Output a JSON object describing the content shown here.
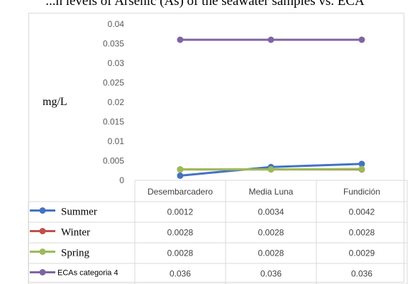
{
  "title": "...n levels of Arsenic (As) of the seawater samples vs. ECA",
  "chart_data": {
    "type": "line",
    "title": "...n levels of Arsenic (As) of the seawater samples vs. ECA",
    "ylabel": "mg/L",
    "xlabel": "",
    "ylim": [
      0,
      0.04
    ],
    "yticks": [
      "0.04",
      "0.035",
      "0.03",
      "0.025",
      "0.02",
      "0.015",
      "0.01",
      "0.005",
      "0"
    ],
    "categories": [
      "Desembarcadero",
      "Media Luna",
      "Fundición"
    ],
    "series": [
      {
        "name": "Summer",
        "color": "#4472C4",
        "values": [
          0.0012,
          0.0034,
          0.0042
        ],
        "labels": [
          "0.0012",
          "0.0034",
          "0.0042"
        ]
      },
      {
        "name": "Winter",
        "color": "#C0504D",
        "values": [
          0.0028,
          0.0028,
          0.0028
        ],
        "labels": [
          "0.0028",
          "0.0028",
          "0.0028"
        ]
      },
      {
        "name": "Spring",
        "color": "#9BBB59",
        "values": [
          0.0028,
          0.0028,
          0.0029
        ],
        "labels": [
          "0.0028",
          "0.0028",
          "0.0029"
        ]
      },
      {
        "name": "ECAs categoria 4",
        "color": "#8064A2",
        "values": [
          0.036,
          0.036,
          0.036
        ],
        "labels": [
          "0.036",
          "0.036",
          "0.036"
        ]
      }
    ],
    "grid": false,
    "legend": "data-table"
  }
}
